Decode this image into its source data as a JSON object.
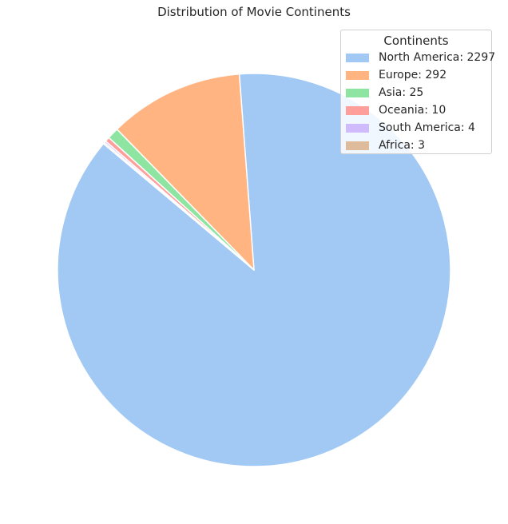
{
  "chart_data": {
    "type": "pie",
    "title": "Distribution of Movie Continents",
    "categories": [
      "North America",
      "Europe",
      "Asia",
      "Oceania",
      "South America",
      "Africa"
    ],
    "values": [
      2297,
      292,
      25,
      10,
      4,
      3
    ],
    "labels": [
      "North America: 2297",
      "Europe: 292",
      "Asia: 25",
      "Oceania: 10",
      "South America: 4",
      "Africa: 3"
    ],
    "colors": [
      "#a1c9f4",
      "#ffb482",
      "#8de5a1",
      "#ff9f9b",
      "#d0bbff",
      "#debb9b"
    ],
    "start_angle_deg": 140,
    "direction": "counterclockwise",
    "legend": {
      "title": "Continents",
      "placement": "top-right"
    }
  }
}
